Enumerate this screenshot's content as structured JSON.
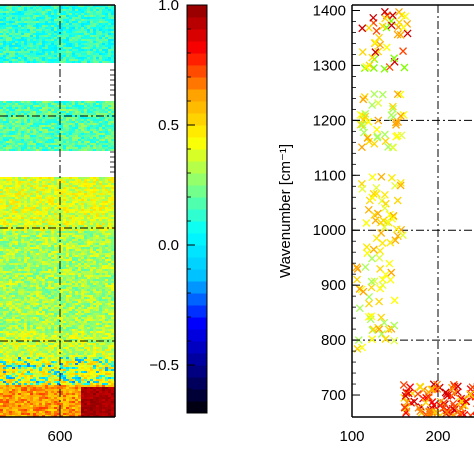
{
  "chart_data": [
    {
      "type": "heatmap",
      "x_ticks": [
        {
          "value": 600,
          "label": "600"
        }
      ],
      "note_rows": [
        "white gaps present between bands"
      ]
    },
    {
      "type": "colorbar",
      "range": [
        -0.7,
        1.0
      ],
      "ticks": [
        {
          "value": 1.0,
          "label": "1.0"
        },
        {
          "value": 0.5,
          "label": "0.5"
        },
        {
          "value": 0.0,
          "label": "0.0"
        },
        {
          "value": -0.5,
          "label": "−0.5"
        }
      ],
      "colormap": [
        "#000000",
        "#00008b",
        "#0000ff",
        "#00bfff",
        "#00ffff",
        "#7fff7f",
        "#ffff00",
        "#ffa500",
        "#ff0000",
        "#8b0000"
      ]
    },
    {
      "type": "scatter",
      "marker": "x",
      "xlim": [
        100,
        300
      ],
      "ylim": [
        660,
        1410
      ],
      "ylabel": "Wavenumber [cm⁻¹]",
      "x_ticks": [
        {
          "value": 100,
          "label": "100"
        },
        {
          "value": 200,
          "label": "200"
        }
      ],
      "y_ticks": [
        {
          "value": 700,
          "label": "700"
        },
        {
          "value": 800,
          "label": "800"
        },
        {
          "value": 900,
          "label": "900"
        },
        {
          "value": 1000,
          "label": "1000"
        },
        {
          "value": 1100,
          "label": "1100"
        },
        {
          "value": 1200,
          "label": "1200"
        },
        {
          "value": 1300,
          "label": "1300"
        },
        {
          "value": 1400,
          "label": "1400"
        }
      ],
      "clusters": [
        {
          "x": [
            110,
            165
          ],
          "y": [
            1290,
            1400
          ],
          "mix": "yellow-red"
        },
        {
          "x": [
            110,
            160
          ],
          "y": [
            1150,
            1250
          ],
          "mix": "yellow-green"
        },
        {
          "x": [
            110,
            160
          ],
          "y": [
            950,
            1100
          ],
          "mix": "yellow"
        },
        {
          "x": [
            105,
            150
          ],
          "y": [
            780,
            950
          ],
          "mix": "yellow-green"
        },
        {
          "x": [
            160,
            300
          ],
          "y": [
            660,
            720
          ],
          "mix": "red-orange"
        }
      ]
    }
  ]
}
